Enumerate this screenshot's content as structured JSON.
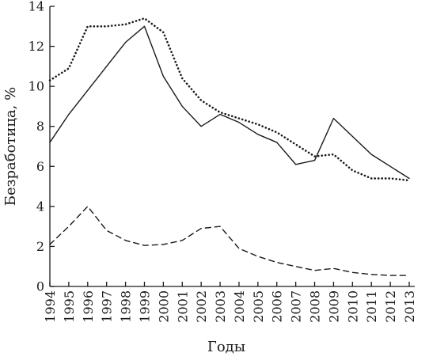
{
  "chart_data": {
    "type": "line",
    "title": "",
    "xlabel": "Годы",
    "ylabel": "Безработица, %",
    "x": [
      1994,
      1995,
      1996,
      1997,
      1998,
      1999,
      2000,
      2001,
      2002,
      2003,
      2004,
      2005,
      2006,
      2007,
      2008,
      2009,
      2010,
      2011,
      2012,
      2013
    ],
    "xticks": [
      "1994",
      "1995",
      "1996",
      "1997",
      "1998",
      "1999",
      "2000",
      "2001",
      "2002",
      "2003",
      "2004",
      "2005",
      "2006",
      "2007",
      "2008",
      "2009",
      "2010",
      "2011",
      "2012",
      "2013"
    ],
    "yticks": [
      "0",
      "2",
      "4",
      "6",
      "8",
      "10",
      "12",
      "14"
    ],
    "ylim": [
      0,
      14
    ],
    "grid": false,
    "series": [
      {
        "style": "solid",
        "values": [
          7.2,
          8.6,
          9.8,
          11.0,
          12.2,
          13.0,
          10.5,
          9.0,
          8.0,
          8.6,
          8.2,
          7.6,
          7.2,
          6.1,
          6.3,
          8.4,
          7.5,
          6.6,
          6.0,
          5.4
        ]
      },
      {
        "style": "dotted",
        "values": [
          10.3,
          10.9,
          13.0,
          13.0,
          13.1,
          13.4,
          12.7,
          10.4,
          9.3,
          8.7,
          8.4,
          8.1,
          7.7,
          7.1,
          6.5,
          6.6,
          5.8,
          5.4,
          5.4,
          5.3
        ]
      },
      {
        "style": "dashed",
        "values": [
          2.1,
          3.0,
          4.0,
          2.8,
          2.3,
          2.05,
          2.1,
          2.3,
          2.9,
          3.0,
          1.9,
          1.5,
          1.2,
          1.0,
          0.8,
          0.9,
          0.7,
          0.6,
          0.55,
          0.55
        ]
      }
    ]
  }
}
